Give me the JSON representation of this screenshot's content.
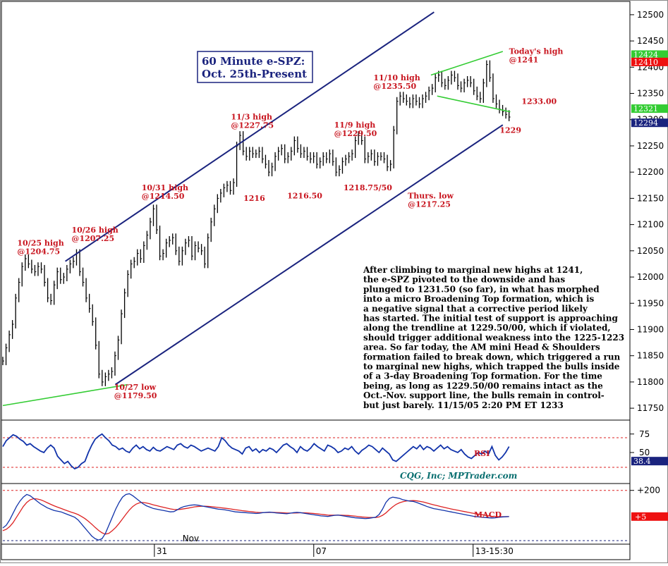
{
  "chart_data": [
    {
      "type": "bar",
      "subtype": "ohlc",
      "title": "60 Minute e-SPZ:\nOct. 25th-Present",
      "price_axis": {
        "ylim": [
          11730,
          12520
        ],
        "ticks": [
          12500,
          12450,
          12400,
          12350,
          12300,
          12250,
          12200,
          12150,
          12100,
          12050,
          12000,
          11950,
          11900,
          11850,
          11800,
          11750
        ],
        "badges": [
          {
            "label": "12424",
            "color": "#33cc33",
            "value": 12424
          },
          {
            "label": "12410",
            "color": "#ee1111",
            "value": 12410
          },
          {
            "label": "12321",
            "color": "#33cc33",
            "value": 12321
          },
          {
            "label": "12294",
            "color": "#1a237e",
            "value": 12294
          }
        ]
      },
      "x_axis": {
        "ticks": [
          {
            "label": "31",
            "x_index": 0.2425
          },
          {
            "label": "07",
            "x_index": 0.4975
          },
          {
            "label": "13-15:30",
            "x_index": 0.7525
          },
          {
            "label": "Nov",
            "x_index": 0.2965
          }
        ]
      },
      "series": [
        {
          "name": "price",
          "values": [
            11840,
            11865,
            11890,
            11910,
            11960,
            11990,
            12020,
            12035,
            12025,
            12015,
            12010,
            12020,
            12015,
            11990,
            11960,
            11955,
            11985,
            12010,
            11995,
            12000,
            12015,
            12025,
            12030,
            12045,
            12010,
            11990,
            11960,
            11940,
            11915,
            11870,
            11815,
            11800,
            11810,
            11815,
            11820,
            11850,
            11880,
            11930,
            11970,
            12005,
            12025,
            12030,
            12045,
            12035,
            12060,
            12080,
            12105,
            12130,
            12090,
            12040,
            12045,
            12065,
            12070,
            12075,
            12050,
            12030,
            12050,
            12065,
            12070,
            12040,
            12060,
            12055,
            12050,
            12025,
            12075,
            12105,
            12130,
            12150,
            12160,
            12170,
            12175,
            12165,
            12180,
            12250,
            12270,
            12240,
            12230,
            12240,
            12235,
            12235,
            12240,
            12225,
            12215,
            12200,
            12210,
            12230,
            12240,
            12245,
            12225,
            12230,
            12240,
            12260,
            12245,
            12235,
            12240,
            12230,
            12225,
            12230,
            12215,
            12220,
            12230,
            12225,
            12235,
            12220,
            12200,
            12205,
            12220,
            12225,
            12230,
            12235,
            12260,
            12270,
            12260,
            12225,
            12230,
            12235,
            12220,
            12230,
            12230,
            12225,
            12210,
            12215,
            12280,
            12335,
            12345,
            12340,
            12335,
            12330,
            12340,
            12335,
            12330,
            12340,
            12345,
            12355,
            12360,
            12380,
            12385,
            12370,
            12365,
            12375,
            12385,
            12380,
            12365,
            12360,
            12370,
            12375,
            12370,
            12355,
            12345,
            12340,
            12370,
            12405,
            12380,
            12340,
            12330,
            12320,
            12315,
            12310,
            12305
          ],
          "color": "#000000"
        },
        {
          "name": "RSI",
          "axis_ticks": [
            75,
            50
          ],
          "ref_lines": [
            70,
            30
          ],
          "last_label": "38.4",
          "values": [
            58,
            66,
            70,
            74,
            72,
            68,
            65,
            60,
            62,
            58,
            55,
            52,
            50,
            56,
            60,
            56,
            45,
            40,
            35,
            38,
            32,
            28,
            30,
            35,
            38,
            50,
            60,
            68,
            72,
            75,
            70,
            66,
            60,
            58,
            54,
            56,
            52,
            50,
            56,
            60,
            55,
            58,
            54,
            52,
            57,
            53,
            52,
            55,
            58,
            56,
            54,
            60,
            62,
            58,
            56,
            60,
            58,
            55,
            52,
            54,
            56,
            54,
            52,
            58,
            70,
            66,
            60,
            56,
            54,
            52,
            48,
            56,
            58,
            52,
            55,
            50,
            54,
            52,
            56,
            54,
            50,
            55,
            60,
            62,
            58,
            55,
            50,
            58,
            54,
            52,
            56,
            62,
            58,
            55,
            52,
            60,
            58,
            55,
            50,
            52,
            56,
            54,
            58,
            52,
            48,
            53,
            56,
            60,
            58,
            54,
            50,
            56,
            52,
            48,
            40,
            38,
            42,
            46,
            50,
            54,
            58,
            55,
            60,
            54,
            58,
            56,
            52,
            56,
            60,
            55,
            58,
            54,
            52,
            50,
            54,
            48,
            44,
            42,
            46,
            50,
            48,
            52,
            48,
            58,
            46,
            40,
            44,
            50,
            58
          ],
          "color": "#1133aa"
        },
        {
          "name": "MACD",
          "axis_ticks": [
            "+200"
          ],
          "last_label": "+5",
          "values": [
            -80,
            -60,
            -20,
            30,
            80,
            120,
            150,
            170,
            160,
            140,
            120,
            100,
            85,
            70,
            60,
            50,
            45,
            40,
            30,
            20,
            10,
            0,
            -20,
            -50,
            -80,
            -110,
            -140,
            -160,
            -170,
            -160,
            -120,
            -60,
            0,
            60,
            110,
            150,
            170,
            175,
            160,
            140,
            120,
            100,
            85,
            75,
            65,
            60,
            55,
            50,
            45,
            40,
            42,
            55,
            70,
            80,
            85,
            90,
            92,
            90,
            85,
            80,
            75,
            70,
            65,
            60,
            58,
            55,
            50,
            45,
            40,
            38,
            36,
            34,
            32,
            30,
            28,
            30,
            34,
            36,
            38,
            35,
            32,
            30,
            28,
            26,
            30,
            34,
            36,
            34,
            30,
            26,
            22,
            18,
            14,
            10,
            8,
            6,
            10,
            14,
            16,
            12,
            8,
            4,
            0,
            -4,
            -6,
            -8,
            -10,
            -8,
            -4,
            0,
            20,
            60,
            110,
            140,
            150,
            145,
            140,
            130,
            125,
            120,
            118,
            110,
            100,
            90,
            80,
            72,
            64,
            60,
            55,
            50,
            45,
            40,
            35,
            30,
            25,
            20,
            15,
            10,
            5,
            3,
            0,
            -2,
            -4,
            -6,
            -4,
            0,
            2,
            4,
            5
          ],
          "color": "#1133aa"
        },
        {
          "name": "MACD signal",
          "values": [
            -100,
            -90,
            -70,
            -40,
            0,
            40,
            80,
            110,
            130,
            138,
            136,
            130,
            120,
            108,
            96,
            85,
            75,
            66,
            56,
            47,
            38,
            30,
            20,
            6,
            -10,
            -30,
            -52,
            -76,
            -98,
            -116,
            -126,
            -120,
            -100,
            -76,
            -46,
            -12,
            22,
            54,
            80,
            98,
            108,
            110,
            106,
            100,
            92,
            86,
            80,
            74,
            68,
            62,
            58,
            57,
            59,
            63,
            67,
            72,
            77,
            80,
            82,
            82,
            81,
            79,
            76,
            73,
            70,
            67,
            64,
            60,
            56,
            53,
            49,
            46,
            43,
            40,
            37,
            35,
            35,
            35,
            36,
            36,
            35,
            34,
            33,
            31,
            31,
            31,
            32,
            33,
            33,
            32,
            30,
            28,
            25,
            22,
            19,
            16,
            15,
            15,
            15,
            15,
            14,
            13,
            11,
            8,
            5,
            2,
            0,
            -2,
            -2,
            -2,
            2,
            14,
            32,
            56,
            78,
            96,
            108,
            116,
            121,
            123,
            124,
            122,
            118,
            113,
            106,
            99,
            92,
            86,
            80,
            74,
            68,
            62,
            57,
            52,
            47,
            42,
            37,
            32,
            27,
            23,
            19,
            15,
            11,
            7,
            5,
            4,
            4,
            4,
            5
          ],
          "color": "#dd2222"
        }
      ],
      "trendlines": [
        {
          "name": "upper-channel",
          "from": [
            0.1,
            12030
          ],
          "to": [
            0.69,
            12505
          ],
          "color": "#1a237e"
        },
        {
          "name": "lower-channel",
          "from": [
            0.18,
            11795
          ],
          "to": [
            0.8,
            12290
          ],
          "color": "#1a237e"
        },
        {
          "name": "support-green",
          "from": [
            0.0,
            11755
          ],
          "to": [
            0.2,
            11795
          ],
          "color": "#33cc33"
        },
        {
          "name": "broadening-top-upper",
          "from": [
            0.685,
            12385
          ],
          "to": [
            0.8,
            12430
          ],
          "color": "#33cc33"
        },
        {
          "name": "broadening-top-lower",
          "from": [
            0.695,
            12345
          ],
          "to": [
            0.812,
            12315
          ],
          "color": "#33cc33"
        }
      ],
      "annotations": [
        {
          "text": "10/25 high\n@1204.75",
          "x": 0.023,
          "price": 12060
        },
        {
          "text": "10/26 high\n@1207.25",
          "x": 0.11,
          "price": 12085
        },
        {
          "text": "10/31 high\n@1214.50",
          "x": 0.222,
          "price": 12165
        },
        {
          "text": "11/3 high\n@1227.75",
          "x": 0.365,
          "price": 12300
        },
        {
          "text": "11/9 high\n@1229.50",
          "x": 0.53,
          "price": 12285
        },
        {
          "text": "11/10 high\n@1235.50",
          "x": 0.593,
          "price": 12375
        },
        {
          "text": "Today's high\n@1241",
          "x": 0.81,
          "price": 12425
        },
        {
          "text": "1233.00",
          "x": 0.83,
          "price": 12330,
          "color": "#c8141e"
        },
        {
          "text": "1229",
          "x": 0.795,
          "price": 12275,
          "color": "#1a237e"
        },
        {
          "text": "1216",
          "x": 0.385,
          "price": 12145
        },
        {
          "text": "1216.50",
          "x": 0.455,
          "price": 12150
        },
        {
          "text": "1218.75/50",
          "x": 0.545,
          "price": 12165
        },
        {
          "text": "Thurs. low\n@1217.25",
          "x": 0.648,
          "price": 12150
        },
        {
          "text": "10/27 low\n@1179.50",
          "x": 0.178,
          "price": 11785
        }
      ],
      "commentary": [
        "After climbing to marginal new highs at 1241,",
        "the e-SPZ pivoted to the downside and has",
        "plunged to 1231.50 (so far), in what has morphed",
        "into a micro Broadening Top formation, which is",
        "a negative signal that a corrective period likely",
        "has started. The initial test of support is approaching",
        "along the trendline at 1229.50/00, which if violated,",
        "should trigger additional weakness into the 1225-1223",
        "area.  So far today, the AM mini Head & Shoulders",
        "formation failed to break down, which triggered a run",
        "to marginal new highs, which trapped the bulls inside",
        "of a 3-day Broadening Top formation. For the time",
        "being, as long as 1229.50/00 remains intact as the",
        "Oct.-Nov. support line, the bulls remain in control-",
        "but just barely.  11/15/05 2:20 PM ET 1233"
      ],
      "source_credit": "CQG, Inc; MPTrader.com",
      "indicator_labels": {
        "rsi": "RSI",
        "macd": "MACD"
      }
    }
  ]
}
